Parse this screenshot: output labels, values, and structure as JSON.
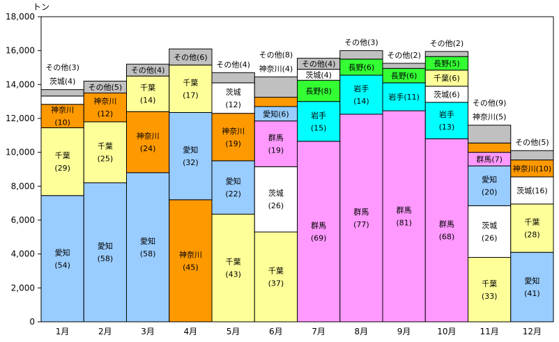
{
  "chart_data": {
    "type": "bar",
    "stacked": true,
    "unit": "トン",
    "ylim": [
      0,
      18000
    ],
    "yticks": [
      "0",
      "2,000",
      "4,000",
      "6,000",
      "8,000",
      "10,000",
      "12,000",
      "14,000",
      "16,000",
      "18,000"
    ],
    "grid": false,
    "categories": [
      "1月",
      "2月",
      "3月",
      "4月",
      "5月",
      "6月",
      "7月",
      "8月",
      "9月",
      "10月",
      "11月",
      "12月"
    ],
    "colors": {
      "愛知": "#99ccff",
      "千葉": "#ffff99",
      "神奈川": "#ff9900",
      "茨城": "#ffffff",
      "群馬": "#ff99ff",
      "岩手": "#00ffff",
      "長野": "#33ff33",
      "その他": "#c0c0c0"
    },
    "bars": [
      {
        "total": 13700,
        "segments": [
          {
            "name": "愛知",
            "value": 7450,
            "label": "愛知\n(54)"
          },
          {
            "name": "千葉",
            "value": 4000,
            "label": "千葉\n(29)"
          },
          {
            "name": "神奈川",
            "value": 1380,
            "label": "神奈川\n(10)"
          },
          {
            "name": "茨城",
            "value": 490,
            "label": "茨城(4)",
            "outside": true
          },
          {
            "name": "その他",
            "value": 380,
            "label": "その他(3)",
            "outside": true
          }
        ]
      },
      {
        "total": 14200,
        "segments": [
          {
            "name": "愛知",
            "value": 8200,
            "label": "愛知\n(58)"
          },
          {
            "name": "千葉",
            "value": 3600,
            "label": "千葉\n(25)"
          },
          {
            "name": "神奈川",
            "value": 1700,
            "label": "神奈川\n(12)"
          },
          {
            "name": "その他",
            "value": 700,
            "label": "その他(5)"
          }
        ]
      },
      {
        "total": 15200,
        "segments": [
          {
            "name": "愛知",
            "value": 8800,
            "label": "愛知\n(58)"
          },
          {
            "name": "神奈川",
            "value": 3600,
            "label": "神奈川\n(24)"
          },
          {
            "name": "千葉",
            "value": 2100,
            "label": "千葉\n(14)"
          },
          {
            "name": "その他",
            "value": 700,
            "label": "その他(4)"
          }
        ]
      },
      {
        "total": 16100,
        "segments": [
          {
            "name": "神奈川",
            "value": 7200,
            "label": "神奈川\n(45)"
          },
          {
            "name": "愛知",
            "value": 5150,
            "label": "愛知\n(32)"
          },
          {
            "name": "千葉",
            "value": 2800,
            "label": "千葉\n(17)"
          },
          {
            "name": "その他",
            "value": 950,
            "label": "その他(6)"
          }
        ]
      },
      {
        "total": 14700,
        "segments": [
          {
            "name": "千葉",
            "value": 6350,
            "label": "千葉\n(43)"
          },
          {
            "name": "愛知",
            "value": 3150,
            "label": "愛知\n(22)"
          },
          {
            "name": "神奈川",
            "value": 2800,
            "label": "神奈川\n(19)"
          },
          {
            "name": "茨城",
            "value": 1800,
            "label": "茨城\n(12)"
          },
          {
            "name": "その他",
            "value": 600,
            "label": "その他(4)",
            "outside": true
          }
        ]
      },
      {
        "total": 14450,
        "segments": [
          {
            "name": "千葉",
            "value": 5300,
            "label": "千葉\n(37)"
          },
          {
            "name": "茨城",
            "value": 3850,
            "label": "茨城\n(26)"
          },
          {
            "name": "群馬",
            "value": 2700,
            "label": "群馬\n(19)"
          },
          {
            "name": "愛知",
            "value": 850,
            "label": "愛知(6)"
          },
          {
            "name": "神奈川",
            "value": 550,
            "label": "神奈川(4)",
            "outside": true
          },
          {
            "name": "その他",
            "value": 1200,
            "label": "その他(8)",
            "outside": true
          }
        ]
      },
      {
        "total": 15550,
        "segments": [
          {
            "name": "群馬",
            "value": 10650,
            "label": "群馬\n(69)"
          },
          {
            "name": "岩手",
            "value": 2350,
            "label": "岩手\n(15)"
          },
          {
            "name": "長野",
            "value": 1250,
            "label": "長野(8)"
          },
          {
            "name": "茨城",
            "value": 650,
            "label": "茨城(4)"
          },
          {
            "name": "その他",
            "value": 650,
            "label": "その他(4)"
          }
        ]
      },
      {
        "total": 16000,
        "segments": [
          {
            "name": "群馬",
            "value": 12250,
            "label": "群馬\n(77)"
          },
          {
            "name": "岩手",
            "value": 2300,
            "label": "岩手\n(14)"
          },
          {
            "name": "長野",
            "value": 950,
            "label": "長野(6)"
          },
          {
            "name": "その他",
            "value": 500,
            "label": "その他(3)",
            "outside": true
          }
        ]
      },
      {
        "total": 15250,
        "segments": [
          {
            "name": "群馬",
            "value": 12450,
            "label": "群馬\n(81)"
          },
          {
            "name": "岩手",
            "value": 1650,
            "label": "岩手(11)"
          },
          {
            "name": "長野",
            "value": 850,
            "label": "長野(6)"
          },
          {
            "name": "その他",
            "value": 300,
            "label": "その他(2)",
            "outside": true
          }
        ]
      },
      {
        "total": 15950,
        "segments": [
          {
            "name": "群馬",
            "value": 10800,
            "label": "群馬\n(68)"
          },
          {
            "name": "岩手",
            "value": 2150,
            "label": "岩手\n(13)"
          },
          {
            "name": "茨城",
            "value": 950,
            "label": "茨城(6)"
          },
          {
            "name": "千葉",
            "value": 950,
            "label": "千葉(6)"
          },
          {
            "name": "長野",
            "value": 800,
            "label": "長野(5)"
          },
          {
            "name": "その他",
            "value": 300,
            "label": "その他(2)",
            "outside": true
          }
        ]
      },
      {
        "total": 11600,
        "segments": [
          {
            "name": "千葉",
            "value": 3800,
            "label": "千葉\n(33)"
          },
          {
            "name": "茨城",
            "value": 3050,
            "label": "茨城\n(26)"
          },
          {
            "name": "愛知",
            "value": 2350,
            "label": "愛知\n(20)"
          },
          {
            "name": "群馬",
            "value": 800,
            "label": "群馬(7)"
          },
          {
            "name": "神奈川",
            "value": 550,
            "label": "神奈川(5)",
            "outside": true
          },
          {
            "name": "その他",
            "value": 1050,
            "label": "その他(9)",
            "outside": true
          }
        ]
      },
      {
        "total": 10100,
        "segments": [
          {
            "name": "愛知",
            "value": 4100,
            "label": "愛知\n(41)"
          },
          {
            "name": "千葉",
            "value": 2850,
            "label": "千葉\n(28)"
          },
          {
            "name": "茨城",
            "value": 1600,
            "label": "茨城(16)"
          },
          {
            "name": "神奈川",
            "value": 1000,
            "label": "神奈川(10)"
          },
          {
            "name": "その他",
            "value": 550,
            "label": "その他(5)",
            "outside": true
          }
        ]
      }
    ]
  }
}
